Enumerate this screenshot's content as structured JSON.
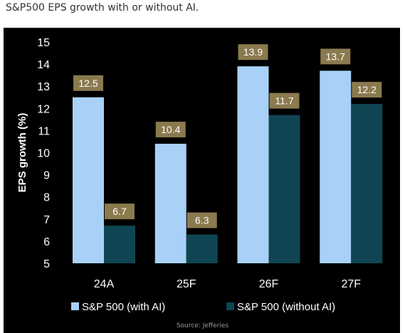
{
  "page": {
    "title": "S&P500 EPS growth with or without AI.",
    "source": "Source: Jefferies"
  },
  "colors": {
    "background": "#000000",
    "series_with_ai": "#a9d1f7",
    "series_without_ai": "#0f4552",
    "label_box": "#8a7a4e",
    "label_text": "#ffffff",
    "axis_text": "#ffffff",
    "source_text": "#9a9a9a"
  },
  "chart_data": {
    "type": "bar",
    "title": "",
    "xlabel": "",
    "ylabel": "EPS growth (%)",
    "ylim": [
      5,
      15
    ],
    "yticks": [
      5,
      6,
      7,
      8,
      9,
      10,
      11,
      12,
      13,
      14,
      15
    ],
    "grid": false,
    "legend_position": "bottom",
    "categories": [
      "24A",
      "25F",
      "26F",
      "27F"
    ],
    "series": [
      {
        "name": "S&P 500 (with AI)",
        "color": "#a9d1f7",
        "values": [
          12.5,
          10.4,
          13.9,
          13.7
        ],
        "labels": [
          "12.5",
          "10.4",
          "13.9",
          "13.7"
        ]
      },
      {
        "name": "S&P 500 (without AI)",
        "color": "#0f4552",
        "values": [
          6.7,
          6.3,
          11.7,
          12.2
        ],
        "labels": [
          "6.7",
          "6.3",
          "11.7",
          "12.2"
        ]
      }
    ]
  }
}
